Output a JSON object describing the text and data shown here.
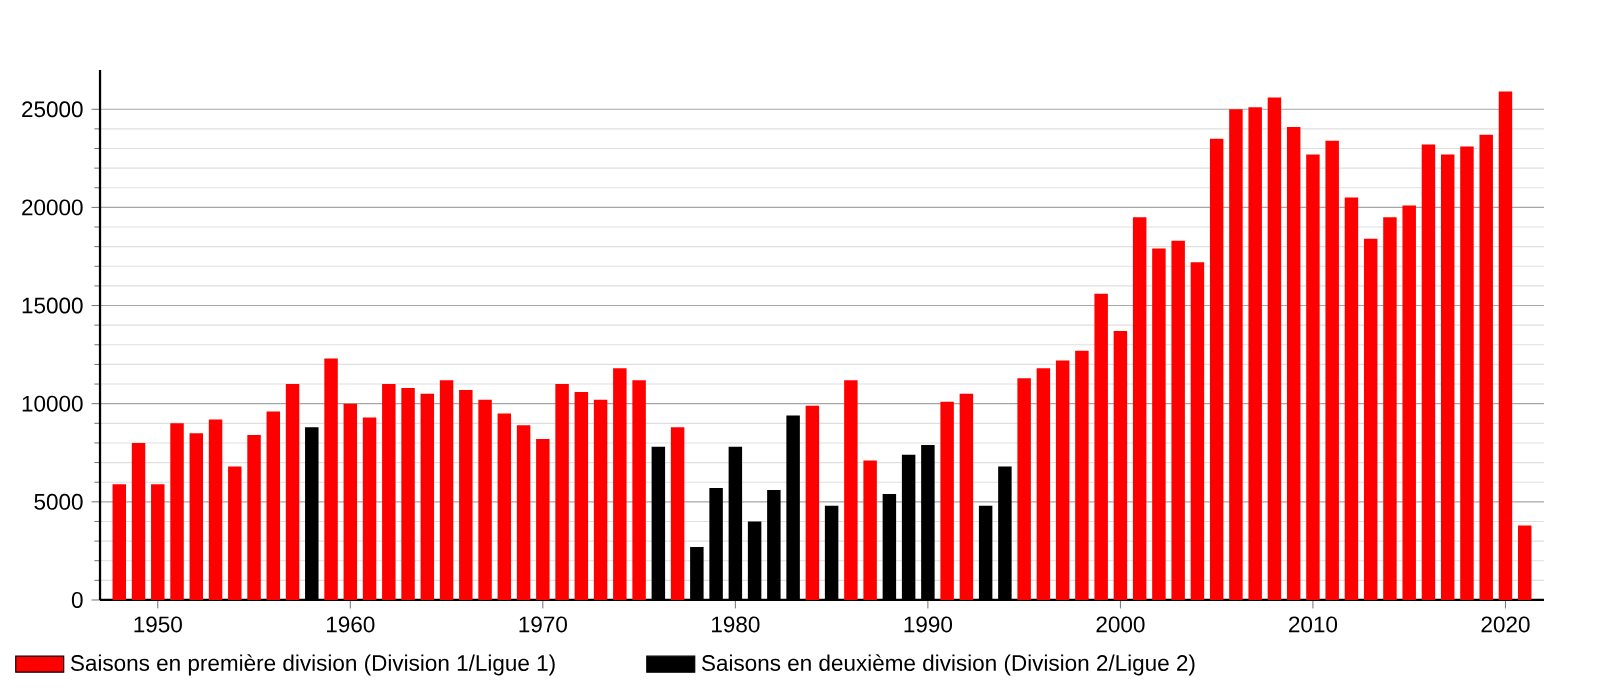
{
  "chart_data": {
    "type": "bar",
    "x": [
      1948,
      1949,
      1950,
      1951,
      1952,
      1953,
      1954,
      1955,
      1956,
      1957,
      1958,
      1959,
      1960,
      1961,
      1962,
      1963,
      1964,
      1965,
      1966,
      1967,
      1968,
      1969,
      1970,
      1971,
      1972,
      1973,
      1974,
      1975,
      1976,
      1977,
      1978,
      1979,
      1980,
      1981,
      1982,
      1983,
      1984,
      1985,
      1986,
      1987,
      1988,
      1989,
      1990,
      1991,
      1992,
      1993,
      1994,
      1995,
      1996,
      1997,
      1998,
      1999,
      2000,
      2001,
      2002,
      2003,
      2004,
      2005,
      2006,
      2007,
      2008,
      2009,
      2010,
      2011,
      2012,
      2013,
      2014,
      2015,
      2016,
      2017,
      2018,
      2019,
      2020,
      2021
    ],
    "series": [
      {
        "name": "Saisons en première division (Division 1/Ligue 1)",
        "color": "#ff0000",
        "values": [
          5900,
          8000,
          5900,
          9000,
          8500,
          9200,
          6800,
          8400,
          9600,
          11000,
          null,
          12300,
          10000,
          9300,
          11000,
          10800,
          10500,
          11200,
          10700,
          10200,
          9500,
          8900,
          8200,
          11000,
          10600,
          10200,
          11800,
          11200,
          null,
          8800,
          null,
          null,
          null,
          null,
          null,
          null,
          9900,
          null,
          11200,
          7100,
          null,
          null,
          null,
          10100,
          10500,
          null,
          null,
          11300,
          11800,
          12200,
          12700,
          15600,
          13700,
          19500,
          17900,
          18300,
          17200,
          23500,
          25000,
          25100,
          25600,
          24100,
          22700,
          23400,
          20500,
          18400,
          19500,
          20100,
          23200,
          22700,
          23100,
          23700,
          25900,
          3800
        ]
      },
      {
        "name": "Saisons en deuxième division (Division 2/Ligue 2)",
        "color": "#000000",
        "values": [
          null,
          null,
          null,
          null,
          null,
          null,
          null,
          null,
          null,
          null,
          8800,
          null,
          null,
          null,
          null,
          null,
          null,
          null,
          null,
          null,
          null,
          null,
          null,
          null,
          null,
          null,
          null,
          null,
          7800,
          null,
          2700,
          5700,
          7800,
          4000,
          5600,
          9400,
          null,
          4800,
          null,
          null,
          5400,
          7400,
          7900,
          null,
          null,
          4800,
          6800,
          null,
          null,
          null,
          null,
          null,
          null,
          null,
          null,
          null,
          null,
          null,
          null,
          null,
          null,
          null,
          null,
          null,
          null,
          null,
          null,
          null,
          null,
          null,
          null,
          null,
          null,
          null
        ]
      }
    ],
    "xlim": [
      1947,
      2022
    ],
    "ylim": [
      0,
      27000
    ],
    "xticks": [
      1950,
      1960,
      1970,
      1980,
      1990,
      2000,
      2010,
      2020
    ],
    "yticks": [
      0,
      5000,
      10000,
      15000,
      20000,
      25000
    ],
    "grid": "y",
    "legend": "bottom left"
  }
}
